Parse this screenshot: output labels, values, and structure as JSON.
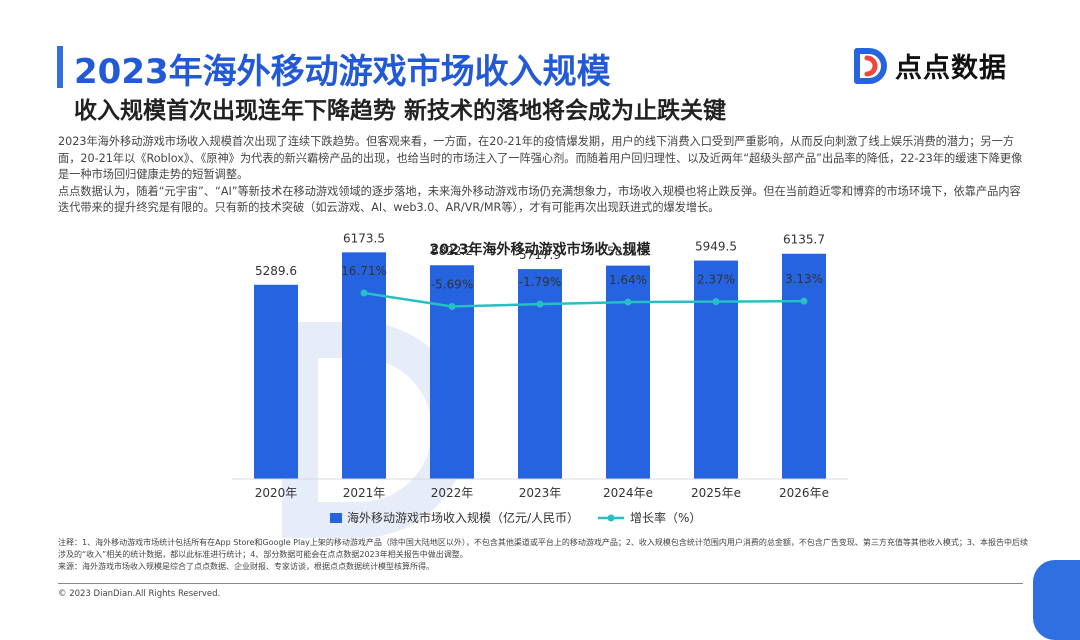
{
  "header": {
    "title": "2023年海外移动游戏市场收入规模",
    "subtitle": "收入规模首次出现连年下降趋势 新技术的落地将会成为止跌关键",
    "brand": "点点数据"
  },
  "body": {
    "paragraph1": "2023年海外移动游戏市场收入规模首次出现了连续下跌趋势。但客观来看，一方面，在20-21年的疫情爆发期，用户的线下消费入口受到严重影响，从而反向刺激了线上娱乐消费的潜力；另一方面，20-21年以《Roblox》、《原神》为代表的新兴霸榜产品的出现，也给当时的市场注入了一阵强心剂。而随着用户回归理性、以及近两年“超级头部产品”出品率的降低，22-23年的缓速下降更像是一种市场回归健康走势的短暂调整。",
    "paragraph2": "点点数据认为，随着“元宇宙”、“AI”等新技术在移动游戏领域的逐步落地，未来海外移动游戏市场仍充满想象力，市场收入规模也将止跌反弹。但在当前趋近零和博弈的市场环境下，依靠产品内容迭代带来的提升终究是有限的。只有新的技术突破（如云游戏、AI、web3.0、AR/VR/MR等），才有可能再次出现跃进式的爆发增长。"
  },
  "chart_data": {
    "type": "bar",
    "title": "2023年海外移动游戏市场收入规模",
    "categories": [
      "2020年",
      "2021年",
      "2022年",
      "2023年",
      "2024年e",
      "2025年e",
      "2026年e"
    ],
    "series": [
      {
        "name": "海外移动游戏市场收入规模（亿元/人民币）",
        "type": "bar",
        "values": [
          5289.6,
          6173.5,
          5822.2,
          5717.9,
          5811.8,
          5949.5,
          6135.7
        ],
        "labels": [
          "5289.6",
          "6173.5",
          "5822.2",
          "5717.9",
          "5811.8",
          "5949.5",
          "6135.7"
        ],
        "color": "#2563e0"
      },
      {
        "name": "增长率（%）",
        "type": "line",
        "values": [
          null,
          16.71,
          -5.69,
          -1.79,
          1.64,
          2.37,
          3.13
        ],
        "labels": [
          "",
          "16.71%",
          "-5.69%",
          "-1.79%",
          "1.64%",
          "2.37%",
          "3.13%"
        ],
        "color": "#26c0c4"
      }
    ],
    "ylim": [
      0,
      7000
    ],
    "y2lim": [
      -60,
      26
    ],
    "grid": false,
    "legend": "bottom"
  },
  "notes": {
    "note": "注释：1、海外移动游戏市场统计包括所有在App Store和Google Play上架的移动游戏产品（除中国大陆地区以外），不包含其他渠道或平台上的移动游戏产品；2、收入规模包含统计范围内用户消费的总金额，不包含广告变现、第三方充值等其他收入模式；3、本报告中后续涉及的“收入”相关的统计数据，都以此标准进行统计；4、部分数据可能会在点点数据2023年相关报告中做出调整。",
    "source": "来源：海外游戏市场收入规模是综合了点点数据、企业财报、专家访谈，根据点点数据统计模型核算所得。"
  },
  "footer": {
    "copyright": "© 2023 DianDian.All Rights Reserved."
  }
}
